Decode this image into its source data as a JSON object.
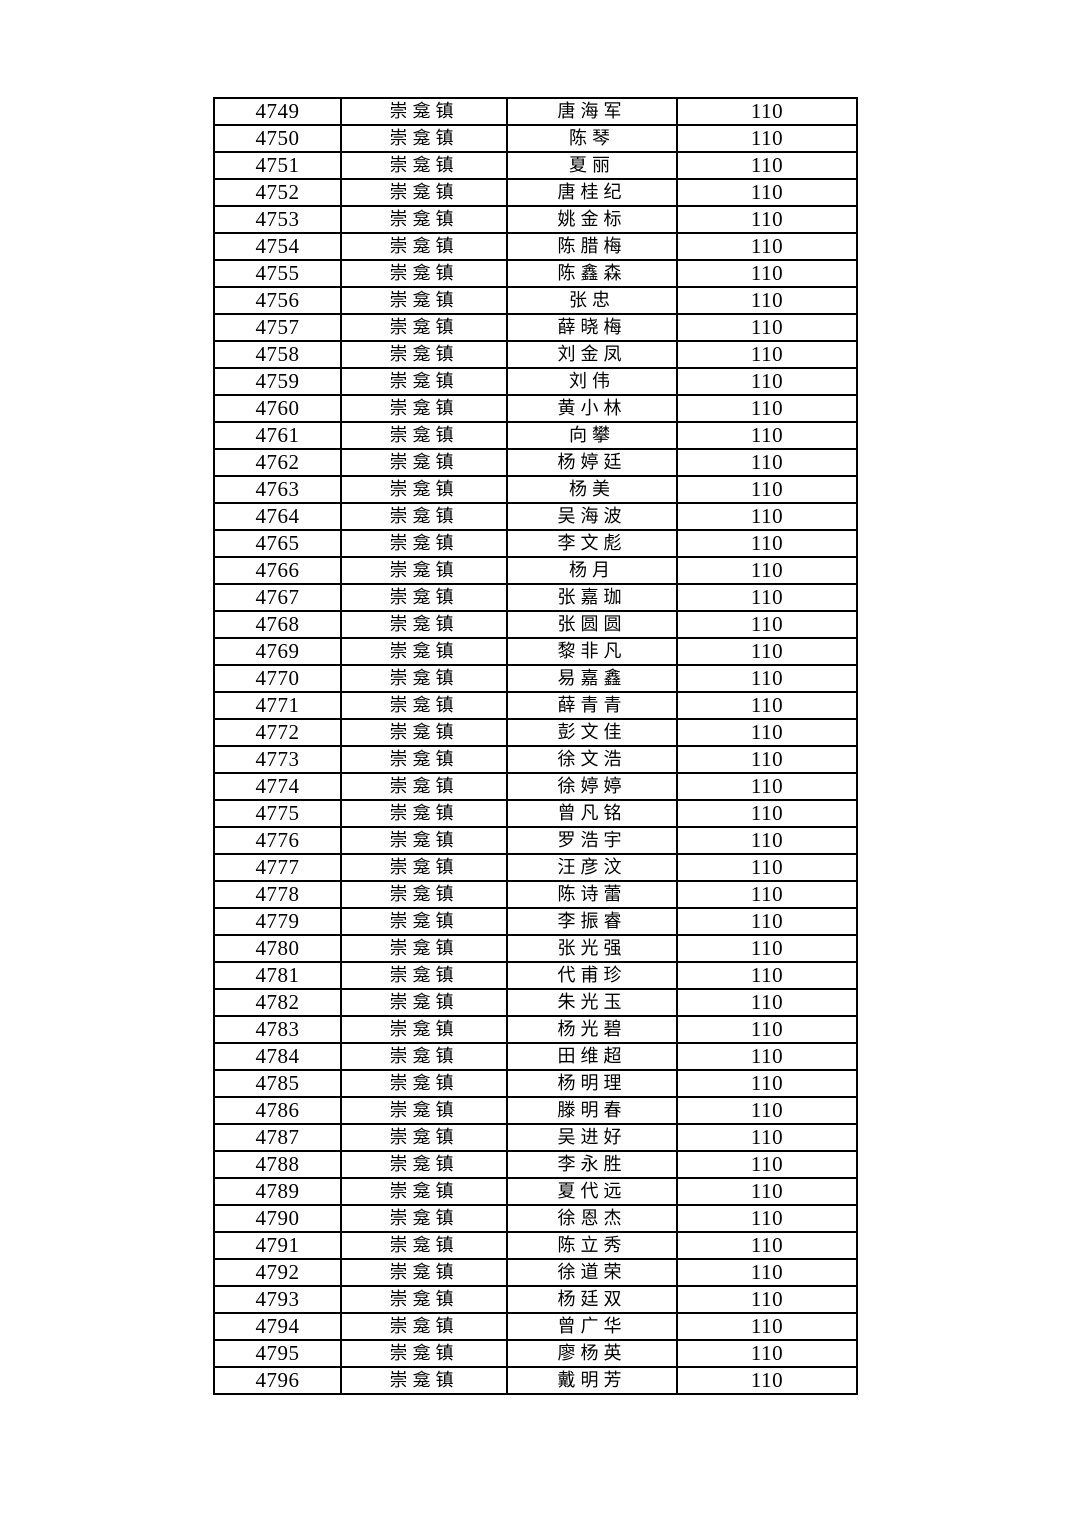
{
  "page": {
    "background": "#ffffff",
    "text_color": "#000000",
    "border_color": "#000000"
  },
  "table": {
    "town": "崇龛镇",
    "common_value": "110",
    "rows": [
      {
        "no": "4749",
        "town": "崇龛镇",
        "name": "唐海军",
        "value": "110"
      },
      {
        "no": "4750",
        "town": "崇龛镇",
        "name": "陈琴",
        "value": "110"
      },
      {
        "no": "4751",
        "town": "崇龛镇",
        "name": "夏丽",
        "value": "110"
      },
      {
        "no": "4752",
        "town": "崇龛镇",
        "name": "唐桂纪",
        "value": "110"
      },
      {
        "no": "4753",
        "town": "崇龛镇",
        "name": "姚金标",
        "value": "110"
      },
      {
        "no": "4754",
        "town": "崇龛镇",
        "name": "陈腊梅",
        "value": "110"
      },
      {
        "no": "4755",
        "town": "崇龛镇",
        "name": "陈鑫森",
        "value": "110"
      },
      {
        "no": "4756",
        "town": "崇龛镇",
        "name": "张忠",
        "value": "110"
      },
      {
        "no": "4757",
        "town": "崇龛镇",
        "name": "薛晓梅",
        "value": "110"
      },
      {
        "no": "4758",
        "town": "崇龛镇",
        "name": "刘金凤",
        "value": "110"
      },
      {
        "no": "4759",
        "town": "崇龛镇",
        "name": "刘伟",
        "value": "110"
      },
      {
        "no": "4760",
        "town": "崇龛镇",
        "name": "黄小林",
        "value": "110"
      },
      {
        "no": "4761",
        "town": "崇龛镇",
        "name": "向攀",
        "value": "110"
      },
      {
        "no": "4762",
        "town": "崇龛镇",
        "name": "杨婷廷",
        "value": "110"
      },
      {
        "no": "4763",
        "town": "崇龛镇",
        "name": "杨美",
        "value": "110"
      },
      {
        "no": "4764",
        "town": "崇龛镇",
        "name": "吴海波",
        "value": "110"
      },
      {
        "no": "4765",
        "town": "崇龛镇",
        "name": "李文彪",
        "value": "110"
      },
      {
        "no": "4766",
        "town": "崇龛镇",
        "name": "杨月",
        "value": "110"
      },
      {
        "no": "4767",
        "town": "崇龛镇",
        "name": "张嘉珈",
        "value": "110"
      },
      {
        "no": "4768",
        "town": "崇龛镇",
        "name": "张圆圆",
        "value": "110"
      },
      {
        "no": "4769",
        "town": "崇龛镇",
        "name": "黎非凡",
        "value": "110"
      },
      {
        "no": "4770",
        "town": "崇龛镇",
        "name": "易嘉鑫",
        "value": "110"
      },
      {
        "no": "4771",
        "town": "崇龛镇",
        "name": "薛青青",
        "value": "110"
      },
      {
        "no": "4772",
        "town": "崇龛镇",
        "name": "彭文佳",
        "value": "110"
      },
      {
        "no": "4773",
        "town": "崇龛镇",
        "name": "徐文浩",
        "value": "110"
      },
      {
        "no": "4774",
        "town": "崇龛镇",
        "name": "徐婷婷",
        "value": "110"
      },
      {
        "no": "4775",
        "town": "崇龛镇",
        "name": "曾凡铭",
        "value": "110"
      },
      {
        "no": "4776",
        "town": "崇龛镇",
        "name": "罗浩宇",
        "value": "110"
      },
      {
        "no": "4777",
        "town": "崇龛镇",
        "name": "汪彦汶",
        "value": "110"
      },
      {
        "no": "4778",
        "town": "崇龛镇",
        "name": "陈诗蕾",
        "value": "110"
      },
      {
        "no": "4779",
        "town": "崇龛镇",
        "name": "李振睿",
        "value": "110"
      },
      {
        "no": "4780",
        "town": "崇龛镇",
        "name": "张光强",
        "value": "110"
      },
      {
        "no": "4781",
        "town": "崇龛镇",
        "name": "代甫珍",
        "value": "110"
      },
      {
        "no": "4782",
        "town": "崇龛镇",
        "name": "朱光玉",
        "value": "110"
      },
      {
        "no": "4783",
        "town": "崇龛镇",
        "name": "杨光碧",
        "value": "110"
      },
      {
        "no": "4784",
        "town": "崇龛镇",
        "name": "田维超",
        "value": "110"
      },
      {
        "no": "4785",
        "town": "崇龛镇",
        "name": "杨明理",
        "value": "110"
      },
      {
        "no": "4786",
        "town": "崇龛镇",
        "name": "滕明春",
        "value": "110"
      },
      {
        "no": "4787",
        "town": "崇龛镇",
        "name": "吴进好",
        "value": "110"
      },
      {
        "no": "4788",
        "town": "崇龛镇",
        "name": "李永胜",
        "value": "110"
      },
      {
        "no": "4789",
        "town": "崇龛镇",
        "name": "夏代远",
        "value": "110"
      },
      {
        "no": "4790",
        "town": "崇龛镇",
        "name": "徐恩杰",
        "value": "110"
      },
      {
        "no": "4791",
        "town": "崇龛镇",
        "name": "陈立秀",
        "value": "110"
      },
      {
        "no": "4792",
        "town": "崇龛镇",
        "name": "徐道荣",
        "value": "110"
      },
      {
        "no": "4793",
        "town": "崇龛镇",
        "name": "杨廷双",
        "value": "110"
      },
      {
        "no": "4794",
        "town": "崇龛镇",
        "name": "曾广华",
        "value": "110"
      },
      {
        "no": "4795",
        "town": "崇龛镇",
        "name": "廖杨英",
        "value": "110"
      },
      {
        "no": "4796",
        "town": "崇龛镇",
        "name": "戴明芳",
        "value": "110"
      }
    ]
  }
}
